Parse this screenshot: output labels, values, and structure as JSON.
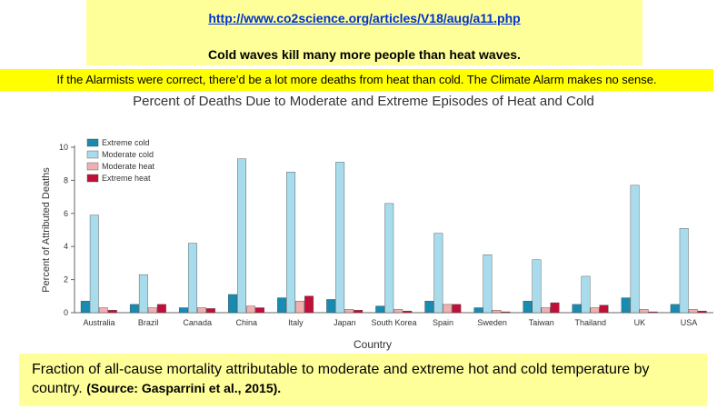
{
  "header": {
    "url": "http://www.co2science.org/articles/V18/aug/a11.php",
    "headline": "Cold waves kill many more people than heat waves.",
    "banner": "If the Alarmists were correct, there’d be a lot more deaths from heat than cold.  The Climate Alarm makes no sense."
  },
  "caption": {
    "text": "Fraction of all-cause mortality attributable to moderate and extreme hot and cold temperature by country.",
    "source": "(Source: Gasparrini et al., 2015)."
  },
  "colors": {
    "extreme_cold": "#1a8bb0",
    "moderate_cold": "#a8dcec",
    "moderate_heat": "#f0b0b0",
    "extreme_heat": "#c0103a",
    "top_box": "#ffff99",
    "banner": "#ffff00",
    "url": "#0033cc"
  },
  "chart_data": {
    "type": "bar",
    "title": "Percent of Deaths Due to Moderate and Extreme Episodes of Heat and Cold",
    "xlabel": "Country",
    "ylabel": "Percent of Attributed Deaths",
    "ylim": [
      0,
      10
    ],
    "yticks": [
      0,
      2,
      4,
      6,
      8,
      10
    ],
    "legend_position": "top-left",
    "categories": [
      "Australia",
      "Brazil",
      "Canada",
      "China",
      "Italy",
      "Japan",
      "South Korea",
      "Spain",
      "Sweden",
      "Taiwan",
      "Thailand",
      "UK",
      "USA"
    ],
    "series": [
      {
        "name": "Extreme cold",
        "values": [
          0.7,
          0.5,
          0.3,
          1.1,
          0.9,
          0.8,
          0.4,
          0.7,
          0.3,
          0.7,
          0.5,
          0.9,
          0.5
        ]
      },
      {
        "name": "Moderate cold",
        "values": [
          5.9,
          2.3,
          4.2,
          9.3,
          8.5,
          9.1,
          6.6,
          4.8,
          3.5,
          3.2,
          2.2,
          7.7,
          5.1
        ]
      },
      {
        "name": "Moderate heat",
        "values": [
          0.3,
          0.3,
          0.3,
          0.4,
          0.7,
          0.2,
          0.2,
          0.5,
          0.15,
          0.3,
          0.3,
          0.2,
          0.2
        ]
      },
      {
        "name": "Extreme heat",
        "values": [
          0.15,
          0.5,
          0.25,
          0.3,
          1.0,
          0.15,
          0.1,
          0.5,
          0.05,
          0.6,
          0.45,
          0.05,
          0.1
        ]
      }
    ]
  }
}
